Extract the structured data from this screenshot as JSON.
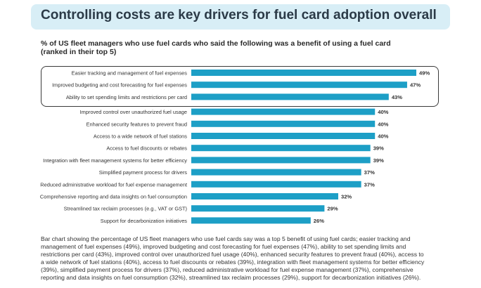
{
  "title": "Controlling costs are key drivers for fuel card adoption overall",
  "subtitle_lines": [
    "% of US fleet managers who use fuel cards who said the following was a benefit of using a fuel card",
    "(ranked in their top 5)"
  ],
  "caption_lines": [
    "Bar chart showing the percentage of US fleet managers who use fuel cards say was a top 5 benefit of using fuel cards; easier tracking and",
    "management of fuel expenses (49%), improved budgeting and cost forecasting for fuel expenses (47%), ability to set spending limits and",
    "restrictions per card (43%), improved control over unauthorized fuel usage (40%), enhanced security features to prevent fraud (40%), access to",
    "a wide network of fuel stations (40%), access to fuel discounts or rebates (39%), integration with fleet management systems for better efficiency",
    "(39%), simplified payment process for drivers (37%), reduced administrative workload for fuel expense management (37%), comprehensive",
    "reporting and data insights on fuel consumption (32%), streamlined tax reclaim processes (29%), support for decarbonization initiatives (26%)."
  ],
  "colors": {
    "bar": "#1d9fc6",
    "banner": "#d8eef6",
    "title": "#2b3a47"
  },
  "chart_data": {
    "type": "bar",
    "orientation": "horizontal",
    "title": "Controlling costs are key drivers for fuel card adoption overall",
    "xlabel": "",
    "ylabel": "",
    "unit": "%",
    "xlim": [
      0,
      50
    ],
    "grid": false,
    "highlighted_top": 3,
    "categories": [
      "Easier tracking and management of fuel expenses",
      "Improved budgeting and cost forecasting for fuel expenses",
      "Ability to set spending limits and restrictions per card",
      "Improved control over unauthorized fuel usage",
      "Enhanced security features to prevent fraud",
      "Access to a wide network of fuel stations",
      "Access to fuel discounts or rebates",
      "Integration with fleet management systems for better efficiency",
      "Simplified payment process for drivers",
      "Reduced administrative workload for fuel expense management",
      "Comprehensive reporting and data insights on fuel consumption",
      "Streamlined tax reclaim processes (e.g., VAT or GST)",
      "Support for decarbonization initiatives"
    ],
    "values": [
      49,
      47,
      43,
      40,
      40,
      40,
      39,
      39,
      37,
      37,
      32,
      29,
      26
    ],
    "value_labels": [
      "49%",
      "47%",
      "43%",
      "40%",
      "40%",
      "40%",
      "39%",
      "39%",
      "37%",
      "37%",
      "32%",
      "29%",
      "26%"
    ]
  }
}
